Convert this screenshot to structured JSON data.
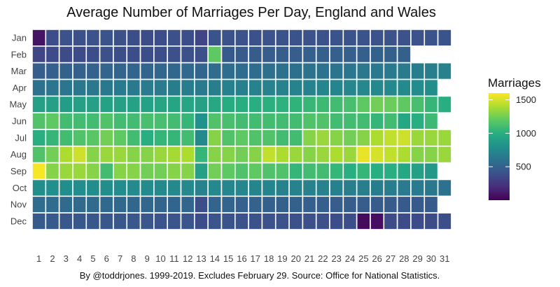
{
  "chart_data": {
    "type": "heatmap",
    "title": "Average Number of Marriages Per Day, England and Wales",
    "caption": "By @toddrjones. 1999-2019. Excludes February 29. Source: Office for National Statistics.",
    "x_categories": [
      "1",
      "2",
      "3",
      "4",
      "5",
      "6",
      "7",
      "8",
      "9",
      "10",
      "11",
      "12",
      "13",
      "14",
      "15",
      "16",
      "17",
      "18",
      "19",
      "20",
      "21",
      "22",
      "23",
      "24",
      "25",
      "26",
      "27",
      "28",
      "29",
      "30",
      "31"
    ],
    "y_categories": [
      "Jan",
      "Feb",
      "Mar",
      "Apr",
      "May",
      "Jun",
      "Jul",
      "Aug",
      "Sep",
      "Oct",
      "Nov",
      "Dec"
    ],
    "legend": {
      "title": "Marriages",
      "ticks": [
        500,
        1000,
        1500
      ],
      "range": [
        0,
        1600
      ],
      "placement": "right"
    },
    "colorscale": "viridis",
    "grid": false,
    "values": [
      [
        80,
        380,
        400,
        390,
        400,
        410,
        390,
        380,
        370,
        380,
        390,
        380,
        330,
        410,
        400,
        400,
        390,
        400,
        410,
        410,
        400,
        400,
        410,
        410,
        410,
        400,
        400,
        400,
        400,
        410,
        410
      ],
      [
        330,
        360,
        370,
        370,
        380,
        390,
        380,
        380,
        380,
        380,
        390,
        390,
        390,
        1200,
        450,
        460,
        460,
        470,
        470,
        470,
        480,
        480,
        480,
        480,
        480,
        490,
        490,
        490,
        null,
        null,
        null
      ],
      [
        470,
        480,
        490,
        490,
        500,
        510,
        510,
        510,
        520,
        530,
        530,
        540,
        520,
        560,
        560,
        570,
        570,
        580,
        590,
        590,
        600,
        600,
        610,
        620,
        630,
        640,
        650,
        660,
        670,
        680,
        700
      ],
      [
        600,
        620,
        620,
        630,
        630,
        640,
        650,
        650,
        660,
        660,
        670,
        670,
        650,
        680,
        690,
        690,
        700,
        700,
        700,
        710,
        710,
        720,
        720,
        730,
        740,
        740,
        750,
        760,
        770,
        780,
        null
      ],
      [
        900,
        900,
        880,
        900,
        900,
        920,
        900,
        910,
        920,
        930,
        940,
        940,
        900,
        960,
        980,
        990,
        1000,
        1010,
        1020,
        1030,
        1060,
        1080,
        1100,
        1120,
        1200,
        1250,
        1230,
        1200,
        1120,
        1050,
        1000
      ],
      [
        1150,
        1200,
        1100,
        1100,
        1100,
        1150,
        1100,
        1100,
        1120,
        1120,
        1100,
        1050,
        800,
        1150,
        1120,
        1100,
        1100,
        1100,
        1100,
        1100,
        1150,
        1150,
        1100,
        1100,
        1100,
        1050,
        1100,
        950,
        1000,
        1080,
        null
      ],
      [
        1000,
        1050,
        1100,
        1150,
        1180,
        1250,
        1200,
        1100,
        1000,
        1050,
        1050,
        1100,
        750,
        1300,
        1150,
        1200,
        1150,
        1150,
        1100,
        1100,
        1300,
        1350,
        1300,
        1250,
        1300,
        1400,
        1450,
        1480,
        1350,
        1350,
        1350
      ],
      [
        1150,
        1250,
        1400,
        1480,
        1300,
        1350,
        1350,
        1300,
        1300,
        1350,
        1380,
        1400,
        1050,
        1300,
        1300,
        1250,
        1300,
        1450,
        1400,
        1350,
        1300,
        1350,
        1400,
        1350,
        1550,
        1500,
        1450,
        1400,
        1300,
        1300,
        1350
      ],
      [
        1580,
        1300,
        1350,
        1350,
        1300,
        1100,
        1300,
        1300,
        1250,
        1250,
        1300,
        1300,
        900,
        1250,
        1200,
        1150,
        1200,
        1150,
        1150,
        1050,
        1100,
        1100,
        1050,
        1000,
        1050,
        1000,
        1000,
        950,
        900,
        850,
        null
      ],
      [
        780,
        790,
        780,
        770,
        780,
        780,
        770,
        760,
        760,
        750,
        740,
        740,
        700,
        740,
        730,
        730,
        720,
        720,
        710,
        710,
        700,
        700,
        690,
        680,
        680,
        670,
        670,
        660,
        650,
        640,
        600
      ],
      [
        560,
        560,
        550,
        550,
        550,
        540,
        540,
        530,
        530,
        520,
        520,
        520,
        380,
        510,
        510,
        500,
        500,
        490,
        490,
        490,
        480,
        480,
        470,
        470,
        470,
        460,
        460,
        450,
        450,
        450,
        null
      ],
      [
        450,
        450,
        440,
        440,
        440,
        440,
        430,
        430,
        430,
        420,
        420,
        420,
        380,
        420,
        410,
        410,
        400,
        400,
        400,
        390,
        390,
        390,
        380,
        380,
        50,
        60,
        370,
        370,
        360,
        370,
        380
      ]
    ]
  }
}
